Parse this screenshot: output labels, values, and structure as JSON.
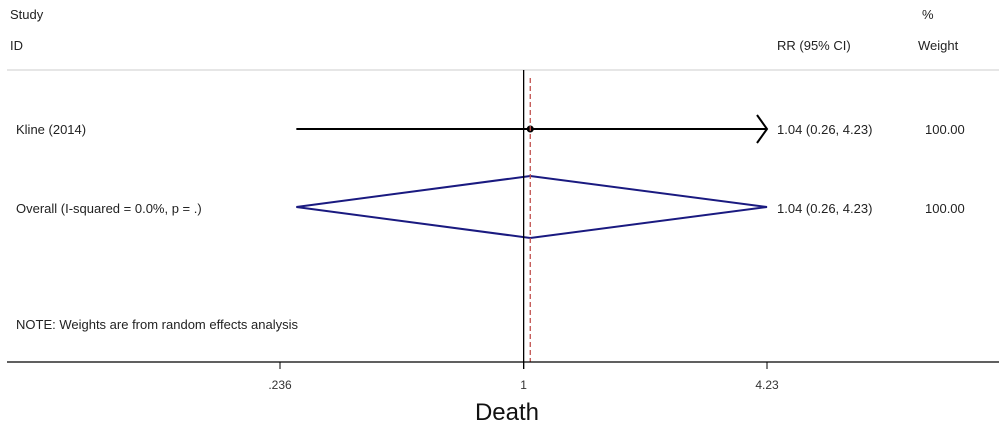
{
  "chart_data": {
    "type": "forest",
    "xscale": "log",
    "xlim": [
      0.236,
      4.23
    ],
    "null_line": 1,
    "overall_line": 1.04,
    "header": {
      "study_line1": "Study",
      "study_line2": "ID",
      "effect_label": "RR (95% CI)",
      "weight_line1": "%",
      "weight_line2": "Weight"
    },
    "studies": [
      {
        "label": "Kline (2014)",
        "rr": 1.04,
        "lower": 0.26,
        "upper": 4.23,
        "ci_text": "1.04 (0.26, 4.23)",
        "weight": "100.00"
      }
    ],
    "overall": {
      "label": "Overall  (I-squared = 0.0%, p = .)",
      "rr": 1.04,
      "lower": 0.26,
      "upper": 4.23,
      "ci_text": "1.04 (0.26, 4.23)",
      "weight": "100.00"
    },
    "note": "NOTE: Weights are from random effects analysis",
    "x_ticks": [
      {
        "value": 0.236,
        "label": ".236"
      },
      {
        "value": 1,
        "label": "1"
      },
      {
        "value": 4.23,
        "label": "4.23"
      }
    ],
    "xlabel": "Death",
    "colors": {
      "diamond": "#1a1a80",
      "overall_line": "#c0504d",
      "ci_line": "#000000",
      "axis": "#000000"
    }
  }
}
